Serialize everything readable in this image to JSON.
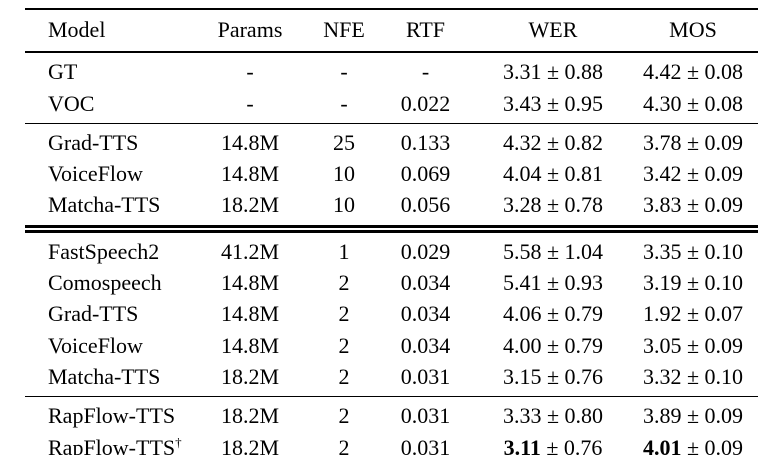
{
  "table": {
    "pm_symbol": "±",
    "columns": [
      {
        "key": "model",
        "label": "Model",
        "align": "left"
      },
      {
        "key": "params",
        "label": "Params",
        "align": "center"
      },
      {
        "key": "nfe",
        "label": "NFE",
        "align": "center"
      },
      {
        "key": "rtf",
        "label": "RTF",
        "align": "center"
      },
      {
        "key": "wer",
        "label": "WER",
        "align": "center"
      },
      {
        "key": "mos",
        "label": "MOS",
        "align": "center"
      }
    ],
    "groups": [
      {
        "rows": [
          {
            "model": "GT",
            "params": "-",
            "nfe": "-",
            "rtf": "-",
            "wer": {
              "value": "3.31",
              "pm": "0.88"
            },
            "mos": {
              "value": "4.42",
              "pm": "0.08"
            }
          },
          {
            "model": "VOC",
            "params": "-",
            "nfe": "-",
            "rtf": "0.022",
            "wer": {
              "value": "3.43",
              "pm": "0.95"
            },
            "mos": {
              "value": "4.30",
              "pm": "0.08"
            }
          }
        ],
        "double_rule_after": false
      },
      {
        "rows": [
          {
            "model": "Grad-TTS",
            "params": "14.8M",
            "nfe": "25",
            "rtf": "0.133",
            "wer": {
              "value": "4.32",
              "pm": "0.82"
            },
            "mos": {
              "value": "3.78",
              "pm": "0.09"
            }
          },
          {
            "model": "VoiceFlow",
            "params": "14.8M",
            "nfe": "10",
            "rtf": "0.069",
            "wer": {
              "value": "4.04",
              "pm": "0.81"
            },
            "mos": {
              "value": "3.42",
              "pm": "0.09"
            }
          },
          {
            "model": "Matcha-TTS",
            "params": "18.2M",
            "nfe": "10",
            "rtf": "0.056",
            "wer": {
              "value": "3.28",
              "pm": "0.78"
            },
            "mos": {
              "value": "3.83",
              "pm": "0.09"
            }
          }
        ],
        "double_rule_after": true
      },
      {
        "rows": [
          {
            "model": "FastSpeech2",
            "params": "41.2M",
            "nfe": "1",
            "rtf": "0.029",
            "wer": {
              "value": "5.58",
              "pm": "1.04"
            },
            "mos": {
              "value": "3.35",
              "pm": "0.10"
            }
          },
          {
            "model": "Comospeech",
            "params": "14.8M",
            "nfe": "2",
            "rtf": "0.034",
            "wer": {
              "value": "5.41",
              "pm": "0.93"
            },
            "mos": {
              "value": "3.19",
              "pm": "0.10"
            }
          },
          {
            "model": "Grad-TTS",
            "params": "14.8M",
            "nfe": "2",
            "rtf": "0.034",
            "wer": {
              "value": "4.06",
              "pm": "0.79"
            },
            "mos": {
              "value": "1.92",
              "pm": "0.07"
            }
          },
          {
            "model": "VoiceFlow",
            "params": "14.8M",
            "nfe": "2",
            "rtf": "0.034",
            "wer": {
              "value": "4.00",
              "pm": "0.79"
            },
            "mos": {
              "value": "3.05",
              "pm": "0.09"
            }
          },
          {
            "model": "Matcha-TTS",
            "params": "18.2M",
            "nfe": "2",
            "rtf": "0.031",
            "wer": {
              "value": "3.15",
              "pm": "0.76"
            },
            "mos": {
              "value": "3.32",
              "pm": "0.10"
            }
          }
        ],
        "double_rule_after": false
      },
      {
        "rows": [
          {
            "model": "RapFlow-TTS",
            "params": "18.2M",
            "nfe": "2",
            "rtf": "0.031",
            "wer": {
              "value": "3.33",
              "pm": "0.80"
            },
            "mos": {
              "value": "3.89",
              "pm": "0.09"
            }
          },
          {
            "model": "RapFlow-TTS",
            "model_sup": "†",
            "params": "18.2M",
            "nfe": "2",
            "rtf": "0.031",
            "wer": {
              "value": "3.11",
              "pm": "0.76",
              "bold": true
            },
            "mos": {
              "value": "4.01",
              "pm": "0.09",
              "bold": true
            }
          }
        ],
        "double_rule_after": false
      }
    ]
  }
}
